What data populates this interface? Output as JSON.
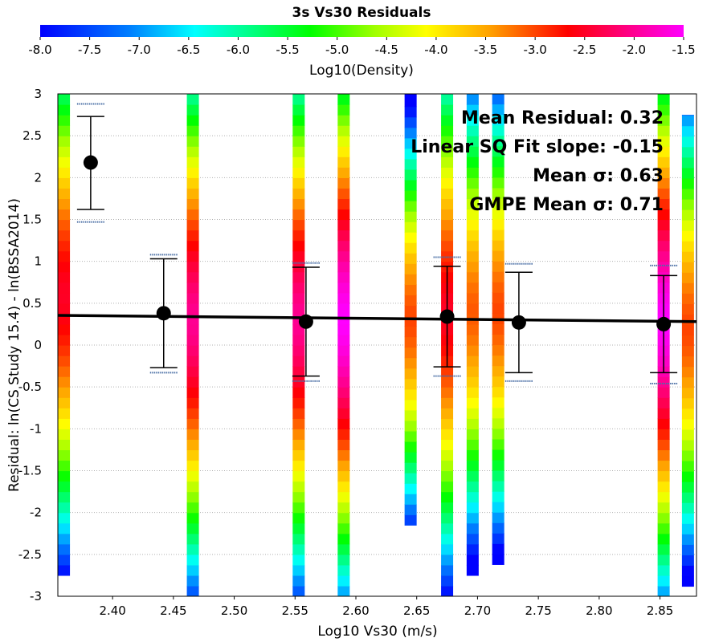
{
  "chart_data": {
    "type": "scatter",
    "title": "3s Vs30 Residuals",
    "xlabel": "Log10 Vs30 (m/s)",
    "ylabel": "Residual: ln(CS Study 15.4) - ln(BSSA2014)",
    "xlim": [
      2.355,
      2.88
    ],
    "ylim": [
      -3,
      3
    ],
    "x_ticks": [
      "2.40",
      "2.45",
      "2.50",
      "2.55",
      "2.60",
      "2.65",
      "2.70",
      "2.75",
      "2.80",
      "2.85"
    ],
    "y_ticks": [
      "3",
      "2.5",
      "2",
      "1.5",
      "1",
      "0.5",
      "0",
      "-0.5",
      "-1",
      "-1.5",
      "-2",
      "-2.5",
      "-3"
    ],
    "grid": true,
    "colorbar": {
      "label": "Log10(Density)",
      "range": [
        -8.0,
        -1.5
      ],
      "ticks": [
        "-8.0",
        "-7.5",
        "-7.0",
        "-6.5",
        "-6.0",
        "-5.5",
        "-5.0",
        "-4.5",
        "-4.0",
        "-3.5",
        "-3.0",
        "-2.5",
        "-2.0",
        "-1.5"
      ]
    },
    "annotations": [
      "Mean Residual: 0.32",
      "Linear SQ Fit slope: -0.15",
      "Mean σ: 0.63",
      "GMPE Mean σ: 0.71"
    ],
    "bin_means": [
      {
        "x": 2.382,
        "mean": 2.18,
        "lower": 1.62,
        "upper": 2.73,
        "gmpe_lower": 1.47,
        "gmpe_upper": 2.88
      },
      {
        "x": 2.442,
        "mean": 0.38,
        "lower": -0.27,
        "upper": 1.03,
        "gmpe_lower": -0.33,
        "gmpe_upper": 1.08
      },
      {
        "x": 2.559,
        "mean": 0.28,
        "lower": -0.37,
        "upper": 0.93,
        "gmpe_lower": -0.43,
        "gmpe_upper": 0.98
      },
      {
        "x": 2.675,
        "mean": 0.34,
        "lower": -0.26,
        "upper": 0.94,
        "gmpe_lower": -0.37,
        "gmpe_upper": 1.05
      },
      {
        "x": 2.734,
        "mean": 0.27,
        "lower": -0.33,
        "upper": 0.87,
        "gmpe_lower": -0.43,
        "gmpe_upper": 0.97
      },
      {
        "x": 2.853,
        "mean": 0.25,
        "lower": -0.33,
        "upper": 0.83,
        "gmpe_lower": -0.46,
        "gmpe_upper": 0.95
      }
    ],
    "fit_line": {
      "x": [
        2.355,
        2.88
      ],
      "y": [
        0.355,
        0.28
      ]
    },
    "density_columns": [
      {
        "x": 2.36,
        "ymin": -2.75,
        "ymax": 3.0,
        "peak": 0.6,
        "peak_value": -2.5
      },
      {
        "x": 2.466,
        "ymin": -3.0,
        "ymax": 3.0,
        "peak": 0.3,
        "peak_value": -2.0
      },
      {
        "x": 2.553,
        "ymin": -3.0,
        "ymax": 3.0,
        "peak": 0.3,
        "peak_value": -2.0
      },
      {
        "x": 2.59,
        "ymin": -3.0,
        "ymax": 3.0,
        "peak": 0.3,
        "peak_value": -1.5
      },
      {
        "x": 2.645,
        "ymin": -2.15,
        "ymax": 3.0,
        "peak": 0.3,
        "peak_value": -3.0
      },
      {
        "x": 2.675,
        "ymin": -3.0,
        "ymax": 3.0,
        "peak": 0.4,
        "peak_value": -2.5
      },
      {
        "x": 2.696,
        "ymin": -2.75,
        "ymax": 3.0,
        "peak": 0.4,
        "peak_value": -3.1
      },
      {
        "x": 2.717,
        "ymin": -2.62,
        "ymax": 3.0,
        "peak": 0.4,
        "peak_value": -3.0
      },
      {
        "x": 2.853,
        "ymin": -3.0,
        "ymax": 3.0,
        "peak": 0.3,
        "peak_value": -1.5
      },
      {
        "x": 2.873,
        "ymin": -2.88,
        "ymax": 2.75,
        "peak": 0.2,
        "peak_value": -3.0
      }
    ]
  }
}
